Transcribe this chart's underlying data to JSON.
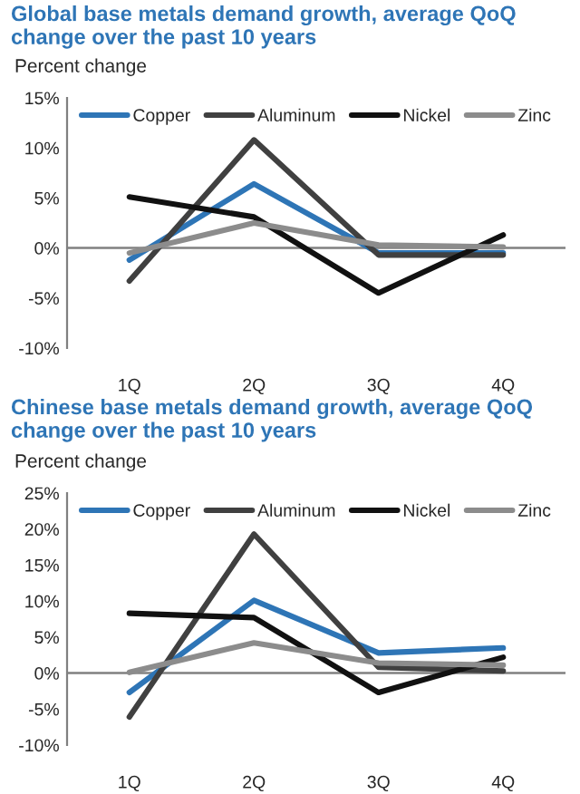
{
  "chart_data": [
    {
      "type": "line",
      "title": "Global base metals demand growth, average QoQ change over the past 10 years",
      "ylabel": "Percent change",
      "categories": [
        "1Q",
        "2Q",
        "3Q",
        "4Q"
      ],
      "series": [
        {
          "name": "Copper",
          "color": "#2e75b6",
          "values": [
            -1.2,
            6.4,
            -0.5,
            -0.5
          ]
        },
        {
          "name": "Aluminum",
          "color": "#404040",
          "values": [
            -3.3,
            10.8,
            -0.7,
            -0.7
          ]
        },
        {
          "name": "Nickel",
          "color": "#111111",
          "values": [
            5.1,
            3.1,
            -4.5,
            1.3
          ]
        },
        {
          "name": "Zinc",
          "color": "#8c8c8c",
          "values": [
            -0.5,
            2.5,
            0.3,
            0.1
          ]
        }
      ],
      "ylim": [
        -10,
        15
      ],
      "yticks": [
        {
          "value": -10,
          "label": "-10%"
        },
        {
          "value": -5,
          "label": "-5%"
        },
        {
          "value": 0,
          "label": "0%"
        },
        {
          "value": 5,
          "label": "5%"
        },
        {
          "value": 10,
          "label": "10%"
        },
        {
          "value": 15,
          "label": "15%"
        }
      ],
      "ref_lines": [
        {
          "axis": "y",
          "value": 0,
          "color": "#808080"
        }
      ],
      "legend": "top",
      "grid": false,
      "marker": "none",
      "line_style": "solid"
    },
    {
      "type": "line",
      "title": "Chinese base metals demand growth, average QoQ change over the past 10 years",
      "ylabel": "Percent change",
      "categories": [
        "1Q",
        "2Q",
        "3Q",
        "4Q"
      ],
      "series": [
        {
          "name": "Copper",
          "color": "#2e75b6",
          "values": [
            -2.7,
            10.1,
            2.8,
            3.5
          ]
        },
        {
          "name": "Aluminum",
          "color": "#404040",
          "values": [
            -6.1,
            19.3,
            0.8,
            0.3
          ]
        },
        {
          "name": "Nickel",
          "color": "#111111",
          "values": [
            8.3,
            7.7,
            -2.7,
            2.2
          ]
        },
        {
          "name": "Zinc",
          "color": "#8c8c8c",
          "values": [
            0.1,
            4.2,
            1.4,
            1.1
          ]
        }
      ],
      "ylim": [
        -10,
        25
      ],
      "yticks": [
        {
          "value": -10,
          "label": "-10%"
        },
        {
          "value": -5,
          "label": "-5%"
        },
        {
          "value": 0,
          "label": "0%"
        },
        {
          "value": 5,
          "label": "5%"
        },
        {
          "value": 10,
          "label": "10%"
        },
        {
          "value": 15,
          "label": "15%"
        },
        {
          "value": 20,
          "label": "20%"
        },
        {
          "value": 25,
          "label": "25%"
        }
      ],
      "ref_lines": [
        {
          "axis": "y",
          "value": 0,
          "color": "#808080"
        }
      ],
      "legend": "top",
      "grid": false,
      "marker": "none",
      "line_style": "solid"
    }
  ]
}
